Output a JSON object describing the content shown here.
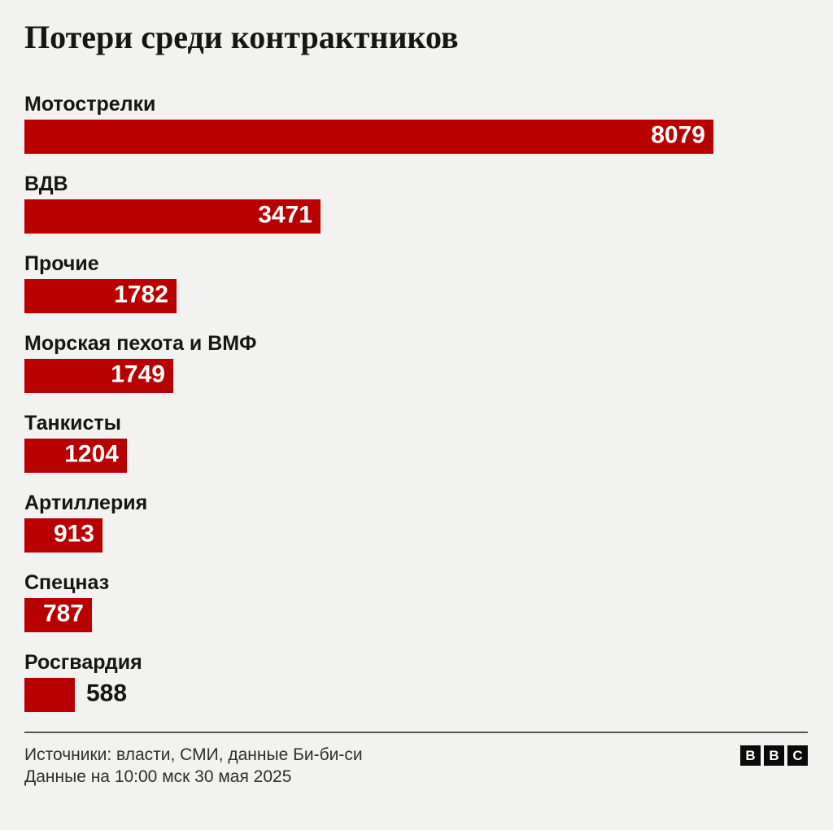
{
  "chart_data": {
    "type": "bar",
    "orientation": "horizontal",
    "title": "Потери среди контрактников",
    "categories": [
      "Мотострелки",
      "ВДВ",
      "Прочие",
      "Морская пехота и ВМФ",
      "Танкисты",
      "Артиллерия",
      "Спецназ",
      "Росгвардия"
    ],
    "values": [
      8079,
      3471,
      1782,
      1749,
      1204,
      913,
      787,
      588
    ],
    "xlim": [
      0,
      8079
    ],
    "grid": false,
    "legend": false,
    "value_labels": "end-of-bar",
    "bar_color": "#b80000",
    "value_color_inside": "#ffffff",
    "value_color_outside": "#161616",
    "background_color": "#f2f2f0",
    "text_color": "#161616"
  },
  "footer": {
    "source": "Источники: власти, СМИ, данные Би-би-си",
    "date_note": "Данные на 10:00 мск 30 мая 2025",
    "logo": {
      "name": "BBC",
      "letters": [
        "B",
        "B",
        "C"
      ]
    }
  }
}
